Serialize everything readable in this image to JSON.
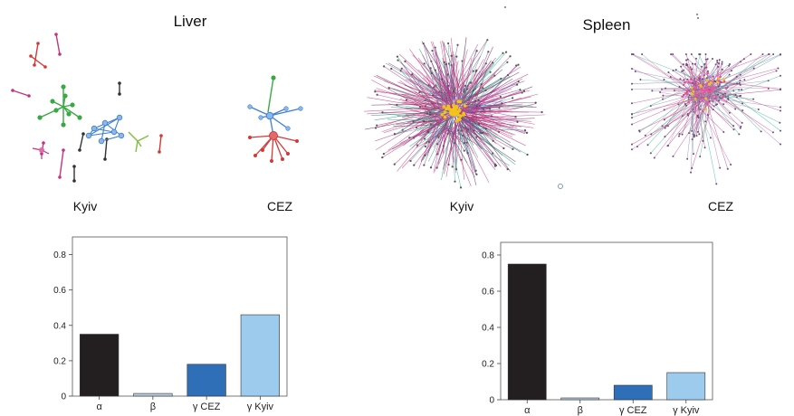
{
  "panels": {
    "liver": {
      "title": "Liver",
      "left_label": "Kyiv",
      "right_label": "CEZ"
    },
    "spleen": {
      "title": "Spleen",
      "left_label": "Kyiv",
      "right_label": "CEZ"
    }
  },
  "colors": {
    "alpha": "#231f20",
    "beta": "#b8cbe0",
    "gamma_cez": "#2e6fb8",
    "gamma_kyiv": "#9dcbee",
    "net_magenta": "#c2357f",
    "net_teal": "#2fb39a",
    "net_yellow": "#f2c318",
    "net_blue": "#3c7fd1",
    "net_red": "#d23a3a",
    "net_green": "#3aa845"
  },
  "chart_data": [
    {
      "type": "bar",
      "panel": "Liver",
      "categories": [
        "α",
        "β",
        "γ CEZ",
        "γ Kyiv"
      ],
      "values": [
        0.35,
        0.015,
        0.18,
        0.46
      ],
      "ylim": [
        0,
        0.9
      ],
      "yticks": [
        "0",
        "0.2",
        "0.4",
        "0.6",
        "0.8"
      ],
      "ytick_values": [
        0,
        0.2,
        0.4,
        0.6,
        0.8
      ],
      "grid": false
    },
    {
      "type": "bar",
      "panel": "Spleen",
      "categories": [
        "α",
        "β",
        "γ CEZ",
        "γ Kyiv"
      ],
      "values": [
        0.75,
        0.01,
        0.08,
        0.15
      ],
      "ylim": [
        0,
        0.87
      ],
      "yticks": [
        "0",
        "0.2",
        "0.4",
        "0.6",
        "0.8"
      ],
      "ytick_values": [
        0,
        0.2,
        0.4,
        0.6,
        0.8
      ],
      "grid": false
    }
  ]
}
